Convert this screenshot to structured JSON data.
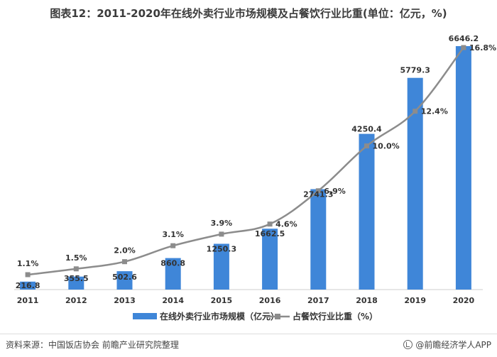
{
  "title": "图表12：2011-2020年在线外卖行业市场规模及占餐饮行业比重(单位：亿元，%)",
  "source": "资料来源：中国饭店协会 前瞻产业研究院整理",
  "brand": "@前瞻经济学人APP",
  "colors": {
    "bar": "#3f86d8",
    "line": "#8c8c8c",
    "text": "#333333"
  },
  "chart_data": {
    "type": "bar",
    "categories": [
      "2011",
      "2012",
      "2013",
      "2014",
      "2015",
      "2016",
      "2017",
      "2018",
      "2019",
      "2020"
    ],
    "series": [
      {
        "name": "在线外卖行业市场规模（亿元）",
        "type": "bar",
        "axis": "left",
        "values": [
          216.8,
          355.5,
          502.6,
          860.8,
          1250.3,
          1662.5,
          2741.3,
          4250.4,
          5779.3,
          6646.2
        ],
        "labels": [
          "216.8",
          "355.5",
          "502.6",
          "860.8",
          "1250.3",
          "1662.5",
          "2741.3",
          "4250.4",
          "5779.3",
          "6646.2"
        ]
      },
      {
        "name": "占餐饮行业比重（%）",
        "type": "line",
        "axis": "right",
        "values": [
          1.1,
          1.5,
          2.0,
          3.1,
          3.9,
          4.6,
          6.9,
          10.0,
          12.4,
          16.8
        ],
        "labels": [
          "1.1%",
          "1.5%",
          "2.0%",
          "3.1%",
          "3.9%",
          "4.6%",
          "6.9%",
          "10.0%",
          "12.4%",
          "16.8%"
        ]
      }
    ],
    "legend_position": "bottom",
    "grid": false
  }
}
